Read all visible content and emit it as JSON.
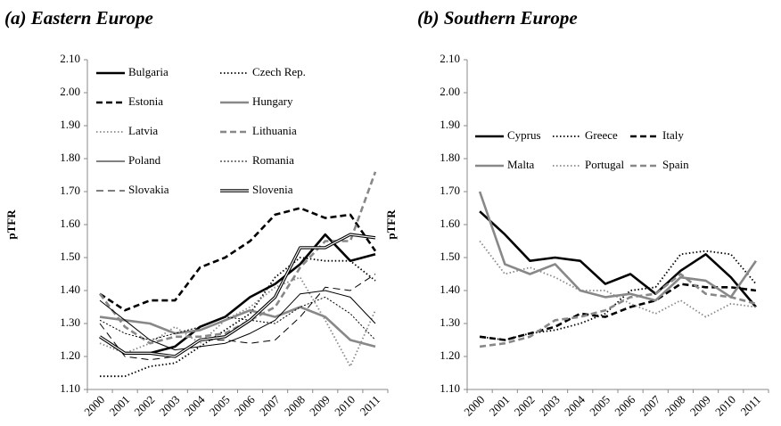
{
  "chart_data": [
    {
      "type": "line",
      "title": "(a) Eastern Europe",
      "y_label": "pTFR",
      "categories": [
        "2000",
        "2001",
        "2002",
        "2003",
        "2004",
        "2005",
        "2006",
        "2007",
        "2008",
        "2009",
        "2010",
        "2011"
      ],
      "ylim": [
        1.1,
        2.1
      ],
      "yticks": [
        {
          "value": 1.1,
          "label": "1.10"
        },
        {
          "value": 1.2,
          "label": "1.20"
        },
        {
          "value": 1.3,
          "label": "1.30"
        },
        {
          "value": 1.4,
          "label": "1.40"
        },
        {
          "value": 1.5,
          "label": "1.50"
        },
        {
          "value": 1.6,
          "label": "1.60"
        },
        {
          "value": 1.7,
          "label": "1.70"
        },
        {
          "value": 1.8,
          "label": "1.80"
        },
        {
          "value": 1.9,
          "label": "1.90"
        },
        {
          "value": 2.0,
          "label": "2.00"
        },
        {
          "value": 2.1,
          "label": "2.10"
        }
      ],
      "legend_columns": 2,
      "series": [
        {
          "name": "Bulgaria",
          "color": "#000000",
          "line_style": "thick-solid",
          "values": [
            1.26,
            1.21,
            1.21,
            1.23,
            1.29,
            1.32,
            1.38,
            1.42,
            1.48,
            1.57,
            1.49,
            1.51
          ]
        },
        {
          "name": "Czech Rep.",
          "color": "#000000",
          "line_style": "dotted",
          "values": [
            1.14,
            1.14,
            1.17,
            1.18,
            1.23,
            1.28,
            1.33,
            1.44,
            1.5,
            1.49,
            1.49,
            1.43
          ]
        },
        {
          "name": "Estonia",
          "color": "#000000",
          "line_style": "dashed",
          "values": [
            1.39,
            1.34,
            1.37,
            1.37,
            1.47,
            1.5,
            1.55,
            1.63,
            1.65,
            1.62,
            1.63,
            1.52
          ]
        },
        {
          "name": "Hungary",
          "color": "#888888",
          "line_style": "thick-solid",
          "values": [
            1.32,
            1.31,
            1.3,
            1.27,
            1.28,
            1.31,
            1.34,
            1.32,
            1.35,
            1.32,
            1.25,
            1.23
          ]
        },
        {
          "name": "Latvia",
          "color": "#888888",
          "line_style": "dotted",
          "values": [
            1.24,
            1.21,
            1.24,
            1.29,
            1.24,
            1.31,
            1.35,
            1.41,
            1.44,
            1.31,
            1.17,
            1.34
          ]
        },
        {
          "name": "Lithuania",
          "color": "#888888",
          "line_style": "dashed",
          "values": [
            1.39,
            1.29,
            1.24,
            1.26,
            1.26,
            1.27,
            1.31,
            1.35,
            1.47,
            1.55,
            1.55,
            1.76
          ]
        },
        {
          "name": "Poland",
          "color": "#000000",
          "line_style": "thin-solid",
          "values": [
            1.37,
            1.31,
            1.25,
            1.22,
            1.23,
            1.24,
            1.27,
            1.31,
            1.39,
            1.4,
            1.38,
            1.3
          ]
        },
        {
          "name": "Romania",
          "color": "#000000",
          "line_style": "thin-dotted",
          "values": [
            1.31,
            1.27,
            1.25,
            1.27,
            1.29,
            1.32,
            1.31,
            1.3,
            1.35,
            1.38,
            1.33,
            1.25
          ]
        },
        {
          "name": "Slovakia",
          "color": "#000000",
          "line_style": "thin-dashed",
          "values": [
            1.3,
            1.2,
            1.19,
            1.2,
            1.25,
            1.25,
            1.24,
            1.25,
            1.32,
            1.41,
            1.4,
            1.45
          ]
        },
        {
          "name": "Slovenia",
          "color": "#000000",
          "line_style": "double",
          "values": [
            1.26,
            1.21,
            1.21,
            1.2,
            1.25,
            1.26,
            1.31,
            1.38,
            1.53,
            1.53,
            1.57,
            1.56
          ]
        }
      ]
    },
    {
      "type": "line",
      "title": "(b) Southern Europe",
      "y_label": "pTFR",
      "categories": [
        "2000",
        "2001",
        "2002",
        "2003",
        "2004",
        "2005",
        "2006",
        "2007",
        "2008",
        "2009",
        "2010",
        "2011"
      ],
      "ylim": [
        1.1,
        2.1
      ],
      "yticks": [
        {
          "value": 1.1,
          "label": "1.10"
        },
        {
          "value": 1.2,
          "label": "1.20"
        },
        {
          "value": 1.3,
          "label": "1.30"
        },
        {
          "value": 1.4,
          "label": "1.40"
        },
        {
          "value": 1.5,
          "label": "1.50"
        },
        {
          "value": 1.6,
          "label": "1.60"
        },
        {
          "value": 1.7,
          "label": "1.70"
        },
        {
          "value": 1.8,
          "label": "1.80"
        },
        {
          "value": 1.9,
          "label": "1.90"
        },
        {
          "value": 2.0,
          "label": "2.00"
        },
        {
          "value": 2.1,
          "label": "2.10"
        }
      ],
      "legend_columns": 3,
      "series": [
        {
          "name": "Cyprus",
          "color": "#000000",
          "line_style": "thick-solid",
          "values": [
            1.64,
            1.57,
            1.49,
            1.5,
            1.49,
            1.42,
            1.45,
            1.39,
            1.46,
            1.51,
            1.44,
            1.35
          ]
        },
        {
          "name": "Greece",
          "color": "#000000",
          "line_style": "dotted",
          "values": [
            1.26,
            1.25,
            1.27,
            1.28,
            1.3,
            1.33,
            1.4,
            1.41,
            1.51,
            1.52,
            1.51,
            1.42
          ]
        },
        {
          "name": "Italy",
          "color": "#000000",
          "line_style": "dashed",
          "values": [
            1.26,
            1.25,
            1.27,
            1.29,
            1.33,
            1.32,
            1.35,
            1.37,
            1.42,
            1.41,
            1.41,
            1.4
          ]
        },
        {
          "name": "Malta",
          "color": "#888888",
          "line_style": "thick-solid",
          "values": [
            1.7,
            1.48,
            1.45,
            1.48,
            1.4,
            1.38,
            1.39,
            1.37,
            1.44,
            1.43,
            1.38,
            1.49
          ]
        },
        {
          "name": "Portugal",
          "color": "#888888",
          "line_style": "dotted",
          "values": [
            1.55,
            1.45,
            1.47,
            1.44,
            1.4,
            1.4,
            1.36,
            1.33,
            1.37,
            1.32,
            1.36,
            1.35
          ]
        },
        {
          "name": "Spain",
          "color": "#888888",
          "line_style": "dashed",
          "values": [
            1.23,
            1.24,
            1.26,
            1.31,
            1.32,
            1.34,
            1.38,
            1.39,
            1.45,
            1.39,
            1.38,
            1.36
          ]
        }
      ]
    }
  ]
}
